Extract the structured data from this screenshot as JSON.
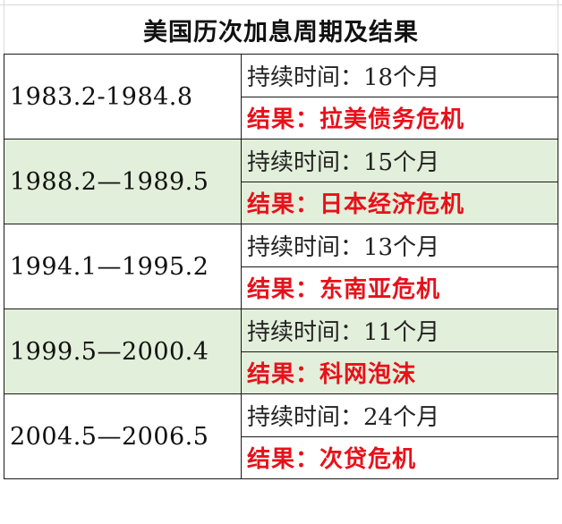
{
  "title": "美国历次加息周期及结果",
  "cycles": [
    {
      "period": "1983.2-1984.8",
      "duration": "持续时间：18个月",
      "result": "结果：拉美债务危机",
      "shaded": false
    },
    {
      "period": "1988.2—1989.5",
      "duration": "持续时间：15个月",
      "result": "结果：日本经济危机",
      "shaded": true
    },
    {
      "period": "1994.1—1995.2",
      "duration": "持续时间：13个月",
      "result": "结果：东南亚危机",
      "shaded": false
    },
    {
      "period": "1999.5—2000.4",
      "duration": "持续时间：11个月",
      "result": "结果：科网泡沫",
      "shaded": true
    },
    {
      "period": "2004.5—2006.5",
      "duration": "持续时间：24个月",
      "result": "结果：次贷危机",
      "shaded": false
    }
  ],
  "colors": {
    "result_text": "#e8101a",
    "shaded_row": "#e2efda",
    "border": "#1a1a1a"
  }
}
